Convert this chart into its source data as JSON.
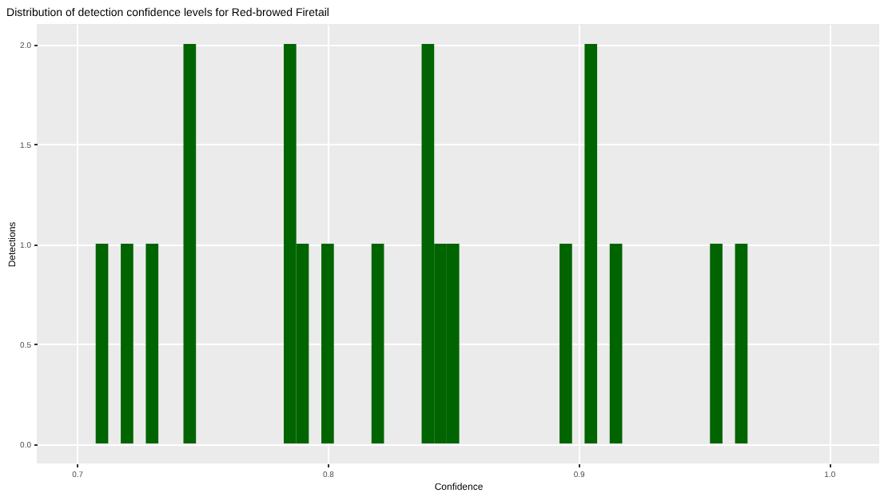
{
  "chart_data": {
    "type": "histogram",
    "title": "Distribution of detection confidence levels for Red-browed Firetail",
    "xlabel": "Confidence",
    "ylabel": "Detections",
    "color": "#006400",
    "bins": [
      0.7075,
      0.7125,
      0.7175,
      0.7225,
      0.7275,
      0.7325,
      0.7375,
      0.7425,
      0.7475,
      0.7525,
      0.7575,
      0.7625,
      0.7675,
      0.7725,
      0.7775,
      0.7825,
      0.7875,
      0.7925,
      0.7975,
      0.8025,
      0.8075,
      0.8125,
      0.8175,
      0.8225,
      0.8275,
      0.8325,
      0.8375,
      0.8425,
      0.8475,
      0.8525,
      0.8575,
      0.8625,
      0.8675,
      0.8725,
      0.8775,
      0.8825,
      0.8875,
      0.8925,
      0.8975,
      0.9025,
      0.9075,
      0.9125,
      0.9175,
      0.9225,
      0.9275,
      0.9325,
      0.9375,
      0.9425,
      0.9475,
      0.9525,
      0.9575,
      0.9625,
      0.9675
    ],
    "values": [
      1,
      0,
      1,
      0,
      1,
      0,
      0,
      2,
      0,
      0,
      0,
      0,
      0,
      0,
      0,
      2,
      1,
      0,
      1,
      0,
      0,
      0,
      1,
      0,
      0,
      0,
      2,
      1,
      1,
      0,
      0,
      0,
      0,
      0,
      0,
      0,
      0,
      1,
      0,
      2,
      0,
      1,
      0,
      0,
      0,
      0,
      0,
      0,
      0,
      1,
      0,
      1
    ],
    "xlim": [
      0.684,
      1.02
    ],
    "ylim": [
      -0.1,
      2.1
    ],
    "xticks": [
      0.7,
      0.8,
      0.9,
      {
        "value": 1.0,
        "label": "1.0"
      }
    ],
    "yticks": [
      {
        "value": 0,
        "label": "0.0"
      },
      0.5,
      {
        "value": 1.0,
        "label": "1.0"
      },
      1.5,
      {
        "value": 2.0,
        "label": "2.0"
      }
    ],
    "grid": true
  }
}
